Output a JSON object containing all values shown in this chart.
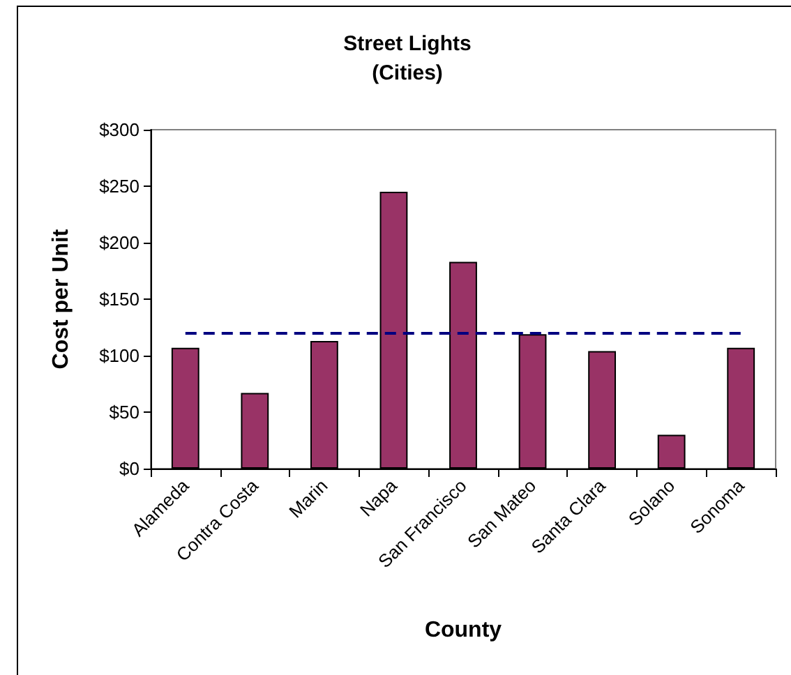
{
  "chart_data": {
    "type": "bar",
    "title": "Street Lights",
    "subtitle": "(Cities)",
    "xlabel": "County",
    "ylabel": "Cost per Unit",
    "categories": [
      "Alameda",
      "Contra Costa",
      "Marin",
      "Napa",
      "San Francisco",
      "San Mateo",
      "Santa Clara",
      "Solano",
      "Sonoma"
    ],
    "values": [
      107,
      67,
      113,
      245,
      183,
      119,
      104,
      30,
      107
    ],
    "color": "#993366",
    "ylim": [
      0,
      300
    ],
    "yticks": [
      {
        "value": 0,
        "label": "$0"
      },
      {
        "value": 50,
        "label": "$50"
      },
      {
        "value": 100,
        "label": "$100"
      },
      {
        "value": 150,
        "label": "$150"
      },
      {
        "value": 200,
        "label": "$200"
      },
      {
        "value": 250,
        "label": "$250"
      },
      {
        "value": 300,
        "label": "$300"
      }
    ],
    "ref_lines": [
      {
        "axis": "y",
        "value": 120,
        "color": "#000080",
        "line_style": "dashed"
      }
    ]
  }
}
